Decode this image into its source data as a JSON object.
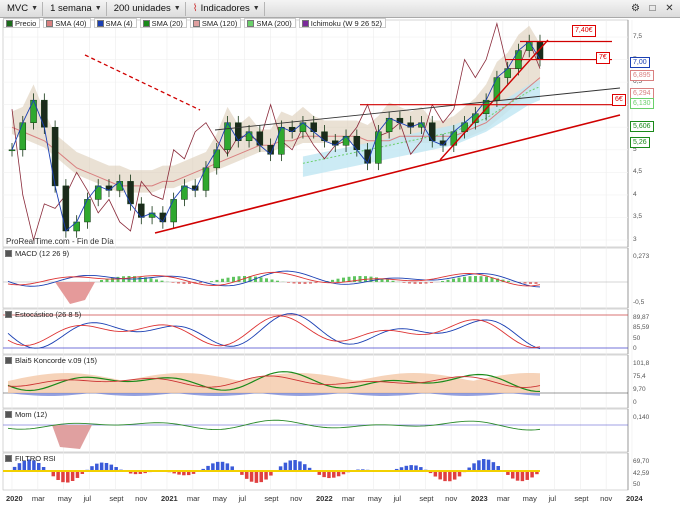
{
  "toolbar": {
    "symbol": "MVC",
    "interval": "1 semana",
    "units": "200 unidades",
    "indicators": "Indicadores"
  },
  "main_legend": [
    {
      "label": "Precio",
      "color": "#1a6b1a"
    },
    {
      "label": "SMA (40)",
      "color": "#d98080"
    },
    {
      "label": "SMA (4)",
      "color": "#1a3fb3"
    },
    {
      "label": "SMA (20)",
      "color": "#1a8a1a"
    },
    {
      "label": "SMA (120)",
      "color": "#e0a0a0"
    },
    {
      "label": "SMA (200)",
      "color": "#6ad06a"
    },
    {
      "label": "Ichimoku (W 9 26 52)",
      "color": "#7a2a9a"
    }
  ],
  "watermark": "ProRealTime.com - Fin de Día",
  "annotations": [
    {
      "label": "7,40€",
      "color": "#d00000"
    },
    {
      "label": "7€",
      "color": "#d00000"
    },
    {
      "label": "6€",
      "color": "#d00000"
    }
  ],
  "price_axis": {
    "ticks": [
      "7,5",
      "7",
      "6,5",
      "6",
      "5,5",
      "5",
      "4,5",
      "4",
      "3,5",
      "3"
    ],
    "value_boxes": [
      {
        "label": "7,00",
        "color": "#1a3fb3"
      },
      {
        "label": "6,895",
        "color": "#d98080"
      },
      {
        "label": "6,294",
        "color": "#d98080"
      },
      {
        "label": "6,130",
        "color": "#6ad06a"
      },
      {
        "label": "5,606",
        "color": "#1a8a1a"
      },
      {
        "label": "5,26",
        "color": "#1a8a1a"
      }
    ]
  },
  "panels": {
    "macd": {
      "label": "MACD (12 26 9)",
      "ticks": [
        "0,273",
        "-0,5"
      ],
      "zero": "0"
    },
    "stoch": {
      "label": "Estocástico (26 8 5)",
      "ticks": [
        "89,87",
        "85,59",
        "50",
        "0"
      ]
    },
    "blai5": {
      "label": "Blai5 Koncorde v.09 (15)",
      "ticks": [
        "101,8",
        "75,4",
        "9,70",
        "0"
      ]
    },
    "mom": {
      "label": "Mom (12)",
      "ticks": [
        "0,140"
      ]
    },
    "rsi": {
      "label": "FILTRO RSI",
      "ticks": [
        "69,70",
        "42,59",
        "50"
      ]
    }
  },
  "x_axis": [
    {
      "label": "2020",
      "year": true
    },
    {
      "label": "mar"
    },
    {
      "label": "may"
    },
    {
      "label": "jul"
    },
    {
      "label": "sept"
    },
    {
      "label": "nov"
    },
    {
      "label": "2021",
      "year": true
    },
    {
      "label": "mar"
    },
    {
      "label": "may"
    },
    {
      "label": "jul"
    },
    {
      "label": "sept"
    },
    {
      "label": "nov"
    },
    {
      "label": "2022",
      "year": true
    },
    {
      "label": "mar"
    },
    {
      "label": "may"
    },
    {
      "label": "jul"
    },
    {
      "label": "sept"
    },
    {
      "label": "nov"
    },
    {
      "label": "2023",
      "year": true
    },
    {
      "label": "mar"
    },
    {
      "label": "may"
    },
    {
      "label": "jul"
    },
    {
      "label": "sept"
    },
    {
      "label": "nov"
    },
    {
      "label": "2024",
      "year": true
    }
  ],
  "chart_data": {
    "type": "line",
    "ylim": [
      3,
      7.7
    ],
    "x_range": [
      "2020-01",
      "2024-01"
    ],
    "close_series": [
      5.0,
      5.6,
      6.1,
      5.5,
      4.2,
      3.2,
      3.4,
      3.9,
      4.2,
      4.1,
      4.3,
      3.8,
      3.5,
      3.6,
      3.4,
      3.9,
      4.2,
      4.1,
      4.6,
      5.0,
      5.6,
      5.2,
      5.4,
      5.1,
      4.9,
      5.5,
      5.4,
      5.6,
      5.4,
      5.2,
      5.1,
      5.3,
      5.0,
      4.7,
      5.4,
      5.7,
      5.6,
      5.5,
      5.6,
      5.2,
      5.1,
      5.4,
      5.6,
      5.8,
      6.1,
      6.6,
      6.8,
      7.2,
      7.4,
      7.0
    ],
    "sma40": [
      5.5,
      5.4,
      5.3,
      5.2,
      5.0,
      4.8,
      4.6,
      4.5,
      4.4,
      4.3,
      4.2,
      4.2,
      4.2,
      4.2,
      4.3,
      4.3,
      4.4,
      4.5,
      4.6,
      4.7,
      4.8,
      4.9,
      5.0,
      5.1,
      5.1,
      5.2,
      5.2,
      5.3,
      5.3,
      5.3,
      5.3,
      5.3,
      5.3,
      5.2,
      5.2,
      5.2,
      5.3,
      5.3,
      5.3,
      5.3,
      5.3,
      5.3,
      5.4,
      5.5,
      5.6,
      5.8,
      6.0,
      6.2,
      6.4,
      6.6
    ],
    "sma200": [
      null,
      null,
      null,
      null,
      null,
      null,
      null,
      null,
      null,
      null,
      null,
      null,
      null,
      null,
      null,
      null,
      null,
      null,
      null,
      null,
      null,
      null,
      null,
      null,
      null,
      null,
      null,
      4.7,
      4.75,
      4.8,
      4.85,
      4.9,
      4.95,
      5.0,
      5.05,
      5.1,
      5.15,
      5.2,
      5.25,
      5.3,
      5.35,
      5.4,
      5.5,
      5.6,
      5.7,
      5.85,
      6.0,
      6.15,
      6.3,
      6.4
    ],
    "support_levels": [
      7.4,
      7.0,
      6.0
    ],
    "annotations": [
      "7,40€",
      "7€",
      "6€"
    ]
  }
}
